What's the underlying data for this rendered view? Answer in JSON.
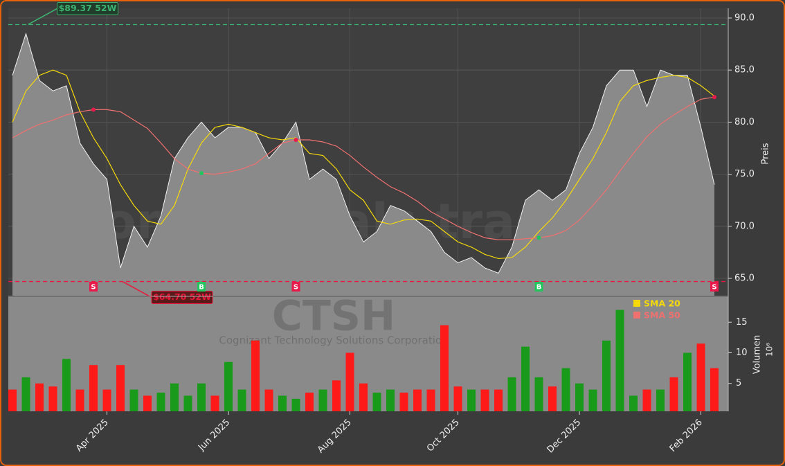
{
  "chart_data": {
    "type": "line",
    "title": "CTSH",
    "subtitle": "Cognizant Technology Solutions Corporation",
    "watermark": "forexsignals.trade",
    "categories": [
      null,
      null,
      null,
      null,
      null,
      null,
      null,
      "Apr 2025",
      null,
      null,
      null,
      null,
      null,
      null,
      null,
      null,
      "Jun 2025",
      null,
      null,
      null,
      null,
      null,
      null,
      null,
      null,
      "Aug 2025",
      null,
      null,
      null,
      null,
      null,
      null,
      null,
      "Oct 2025",
      null,
      null,
      null,
      null,
      null,
      null,
      null,
      null,
      "Dec 2025",
      null,
      null,
      null,
      null,
      null,
      null,
      null,
      null,
      "Feb 2026",
      null
    ],
    "price": {
      "color": "#8a8a8a",
      "values": [
        84.5,
        88.5,
        84,
        83,
        83.5,
        78,
        76,
        74.5,
        66,
        70,
        68,
        71,
        76.5,
        78.5,
        80,
        78.5,
        79.5,
        79.5,
        79,
        76.5,
        78,
        80,
        74.5,
        75.5,
        74.5,
        71,
        68.5,
        69.5,
        72,
        71.5,
        70.5,
        69.5,
        67.5,
        66.5,
        67,
        66,
        65.5,
        68,
        72.5,
        73.5,
        72.5,
        73.5,
        77,
        79.5,
        83.5,
        85,
        85,
        81.5,
        85,
        84.5,
        84.5,
        79.5,
        74
      ]
    },
    "series": [
      {
        "name": "SMA 20",
        "color": "#f5d90a",
        "values": [
          80,
          83,
          84.5,
          85,
          84.5,
          81,
          78.5,
          76.5,
          74,
          72,
          70.5,
          70.2,
          72,
          75.5,
          78,
          79.5,
          79.8,
          79.5,
          79,
          78.5,
          78.3,
          78.5,
          77,
          76.8,
          75.5,
          73.5,
          72.5,
          70.5,
          70.2,
          70.6,
          70.7,
          70.5,
          69.5,
          68.5,
          68,
          67.3,
          66.9,
          67,
          68,
          69.5,
          70.8,
          72.5,
          74.5,
          76.5,
          79,
          82,
          83.5,
          84,
          84.3,
          84.5,
          84.3,
          83.5,
          82.5
        ]
      },
      {
        "name": "SMA 50",
        "color": "#f07070",
        "values": [
          78.5,
          79.2,
          79.8,
          80.2,
          80.7,
          81,
          81.2,
          81.2,
          81,
          80.2,
          79.4,
          78,
          76.5,
          75.5,
          75.1,
          75,
          75.2,
          75.5,
          76,
          77,
          78,
          78.3,
          78.3,
          78.1,
          77.7,
          76.8,
          75.7,
          74.7,
          73.8,
          73.2,
          72.4,
          71.4,
          70.7,
          70,
          69.4,
          68.9,
          68.7,
          68.7,
          68.8,
          68.9,
          69.1,
          69.6,
          70.6,
          72,
          73.5,
          75.3,
          77,
          78.6,
          79.8,
          80.7,
          81.5,
          82.2,
          82.4
        ]
      }
    ],
    "ylabel": "Preis",
    "ylim": [
      63.34,
      90.93
    ],
    "yticks": [
      {
        "value": 65,
        "label": "65.0"
      },
      {
        "value": 70,
        "label": "70.0"
      },
      {
        "value": 75,
        "label": "75.0"
      },
      {
        "value": 80,
        "label": "80.0"
      },
      {
        "value": 85,
        "label": "85.0"
      },
      {
        "value": 90,
        "label": "90.0"
      }
    ],
    "grid": true,
    "high_52w": {
      "value": 89.37,
      "label": "$89.37 52W",
      "color": "#3cb371",
      "at": 1
    },
    "low_52w": {
      "value": 64.7,
      "label": "$64.70 52W",
      "color": "#e8193c",
      "at": 8
    },
    "signals": [
      {
        "at": 6,
        "label": "S",
        "color": "#e8194b"
      },
      {
        "at": 14,
        "label": "B",
        "color": "#22c55e"
      },
      {
        "at": 21,
        "label": "S",
        "color": "#e8194b"
      },
      {
        "at": 39,
        "label": "B",
        "color": "#22c55e"
      },
      {
        "at": 52,
        "label": "S",
        "color": "#e8194b"
      }
    ],
    "volume": {
      "type": "bar",
      "ylabel": "Volumen",
      "scale_label": "10⁶",
      "up_color": "#1a9a1a",
      "down_color": "#ff1a1a",
      "values": [
        4,
        6,
        5,
        4.5,
        9,
        4,
        8,
        4,
        8,
        4,
        3,
        3.5,
        5,
        3,
        5,
        3,
        8.5,
        4,
        12,
        4,
        3,
        2.5,
        3.5,
        4,
        5.5,
        10,
        5,
        3.5,
        4,
        3.5,
        4,
        4,
        14.5,
        4.5,
        4,
        4,
        4,
        6,
        11,
        6,
        4.5,
        7.5,
        5,
        4,
        12,
        17,
        3,
        4,
        4,
        6,
        10,
        11.5,
        7.5
      ],
      "ylim": [
        0.45,
        19.1
      ],
      "yticks": [
        5,
        10,
        15
      ]
    }
  }
}
